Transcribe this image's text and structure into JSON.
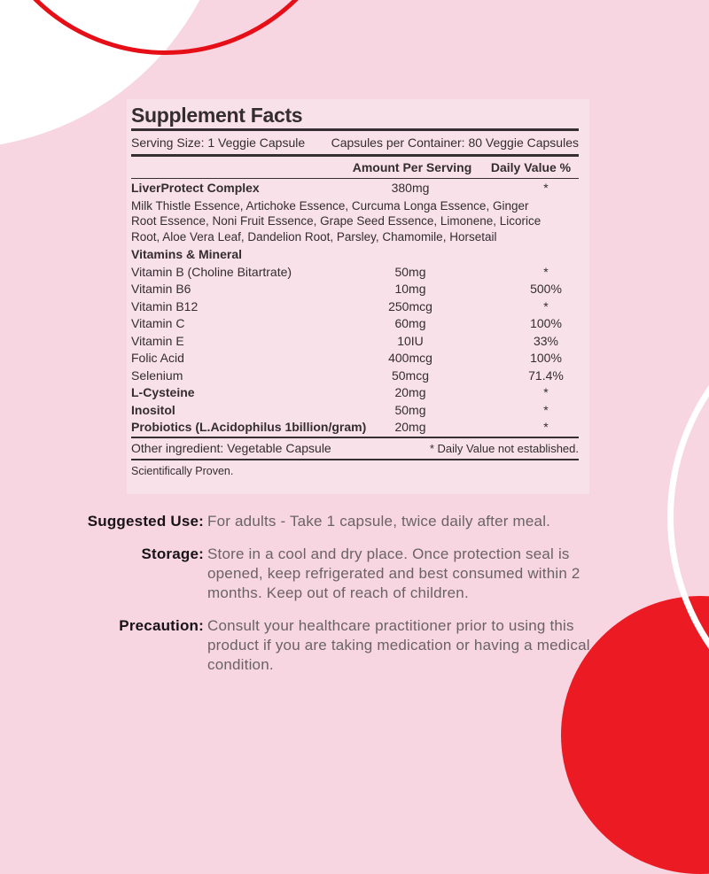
{
  "colors": {
    "page_background": "#f7d6e1",
    "panel_background": "#f9e1ea",
    "accent_red": "#ec1b23",
    "ring_red": "#e60f17",
    "panel_text": "#332d30",
    "info_label_text": "#171317",
    "info_body_text": "#6a6366",
    "white": "#ffffff"
  },
  "panel": {
    "title": "Supplement Facts",
    "serving_size": "Serving Size: 1 Veggie Capsule",
    "capsules_per_container": "Capsules per Container: 80 Veggie Capsules",
    "col_amount": "Amount Per Serving",
    "col_daily_value": "Daily Value %",
    "rows": [
      {
        "name": "LiverProtect Complex",
        "bold": true,
        "amount": "380mg",
        "dv": "*",
        "desc": "Milk Thistle Essence, Artichoke Essence, Curcuma Longa Essence, Ginger Root Essence, Noni Fruit Essence, Grape Seed Essence, Limonene, Licorice Root, Aloe Vera Leaf, Dandelion Root, Parsley, Chamomile, Horsetail"
      },
      {
        "name": "Vitamins & Mineral",
        "bold": true,
        "amount": "",
        "dv": ""
      },
      {
        "name": "Vitamin B (Choline Bitartrate)",
        "bold": false,
        "amount": "50mg",
        "dv": "*"
      },
      {
        "name": "Vitamin B6",
        "bold": false,
        "amount": "10mg",
        "dv": "500%"
      },
      {
        "name": "Vitamin B12",
        "bold": false,
        "amount": "250mcg",
        "dv": "*"
      },
      {
        "name": "Vitamin C",
        "bold": false,
        "amount": "60mg",
        "dv": "100%"
      },
      {
        "name": "Vitamin E",
        "bold": false,
        "amount": "10IU",
        "dv": "33%"
      },
      {
        "name": "Folic Acid",
        "bold": false,
        "amount": "400mcg",
        "dv": "100%"
      },
      {
        "name": "Selenium",
        "bold": false,
        "amount": "50mcg",
        "dv": "71.4%"
      },
      {
        "name": "L-Cysteine",
        "bold": true,
        "amount": "20mg",
        "dv": "*"
      },
      {
        "name": "Inositol",
        "bold": true,
        "amount": "50mg",
        "dv": "*"
      },
      {
        "name": "Probiotics (L.Acidophilus 1billion/gram)",
        "bold": true,
        "amount": "20mg",
        "dv": "*"
      }
    ],
    "other_ingredient": "Other ingredient: Vegetable Capsule",
    "dv_note": "* Daily Value not established.",
    "footnote": "Scientifically Proven."
  },
  "info": {
    "sections": [
      {
        "label": "Suggested Use:",
        "text": "For adults - Take 1 capsule, twice daily after meal."
      },
      {
        "label": "Storage:",
        "text": "Store in a cool and dry place. Once protection seal is opened, keep refrigerated and best consumed within 2 months. Keep out of reach of children."
      },
      {
        "label": "Precaution:",
        "text": "Consult your healthcare practitioner prior to using this product if you are taking medication or having a medical condition."
      }
    ]
  }
}
